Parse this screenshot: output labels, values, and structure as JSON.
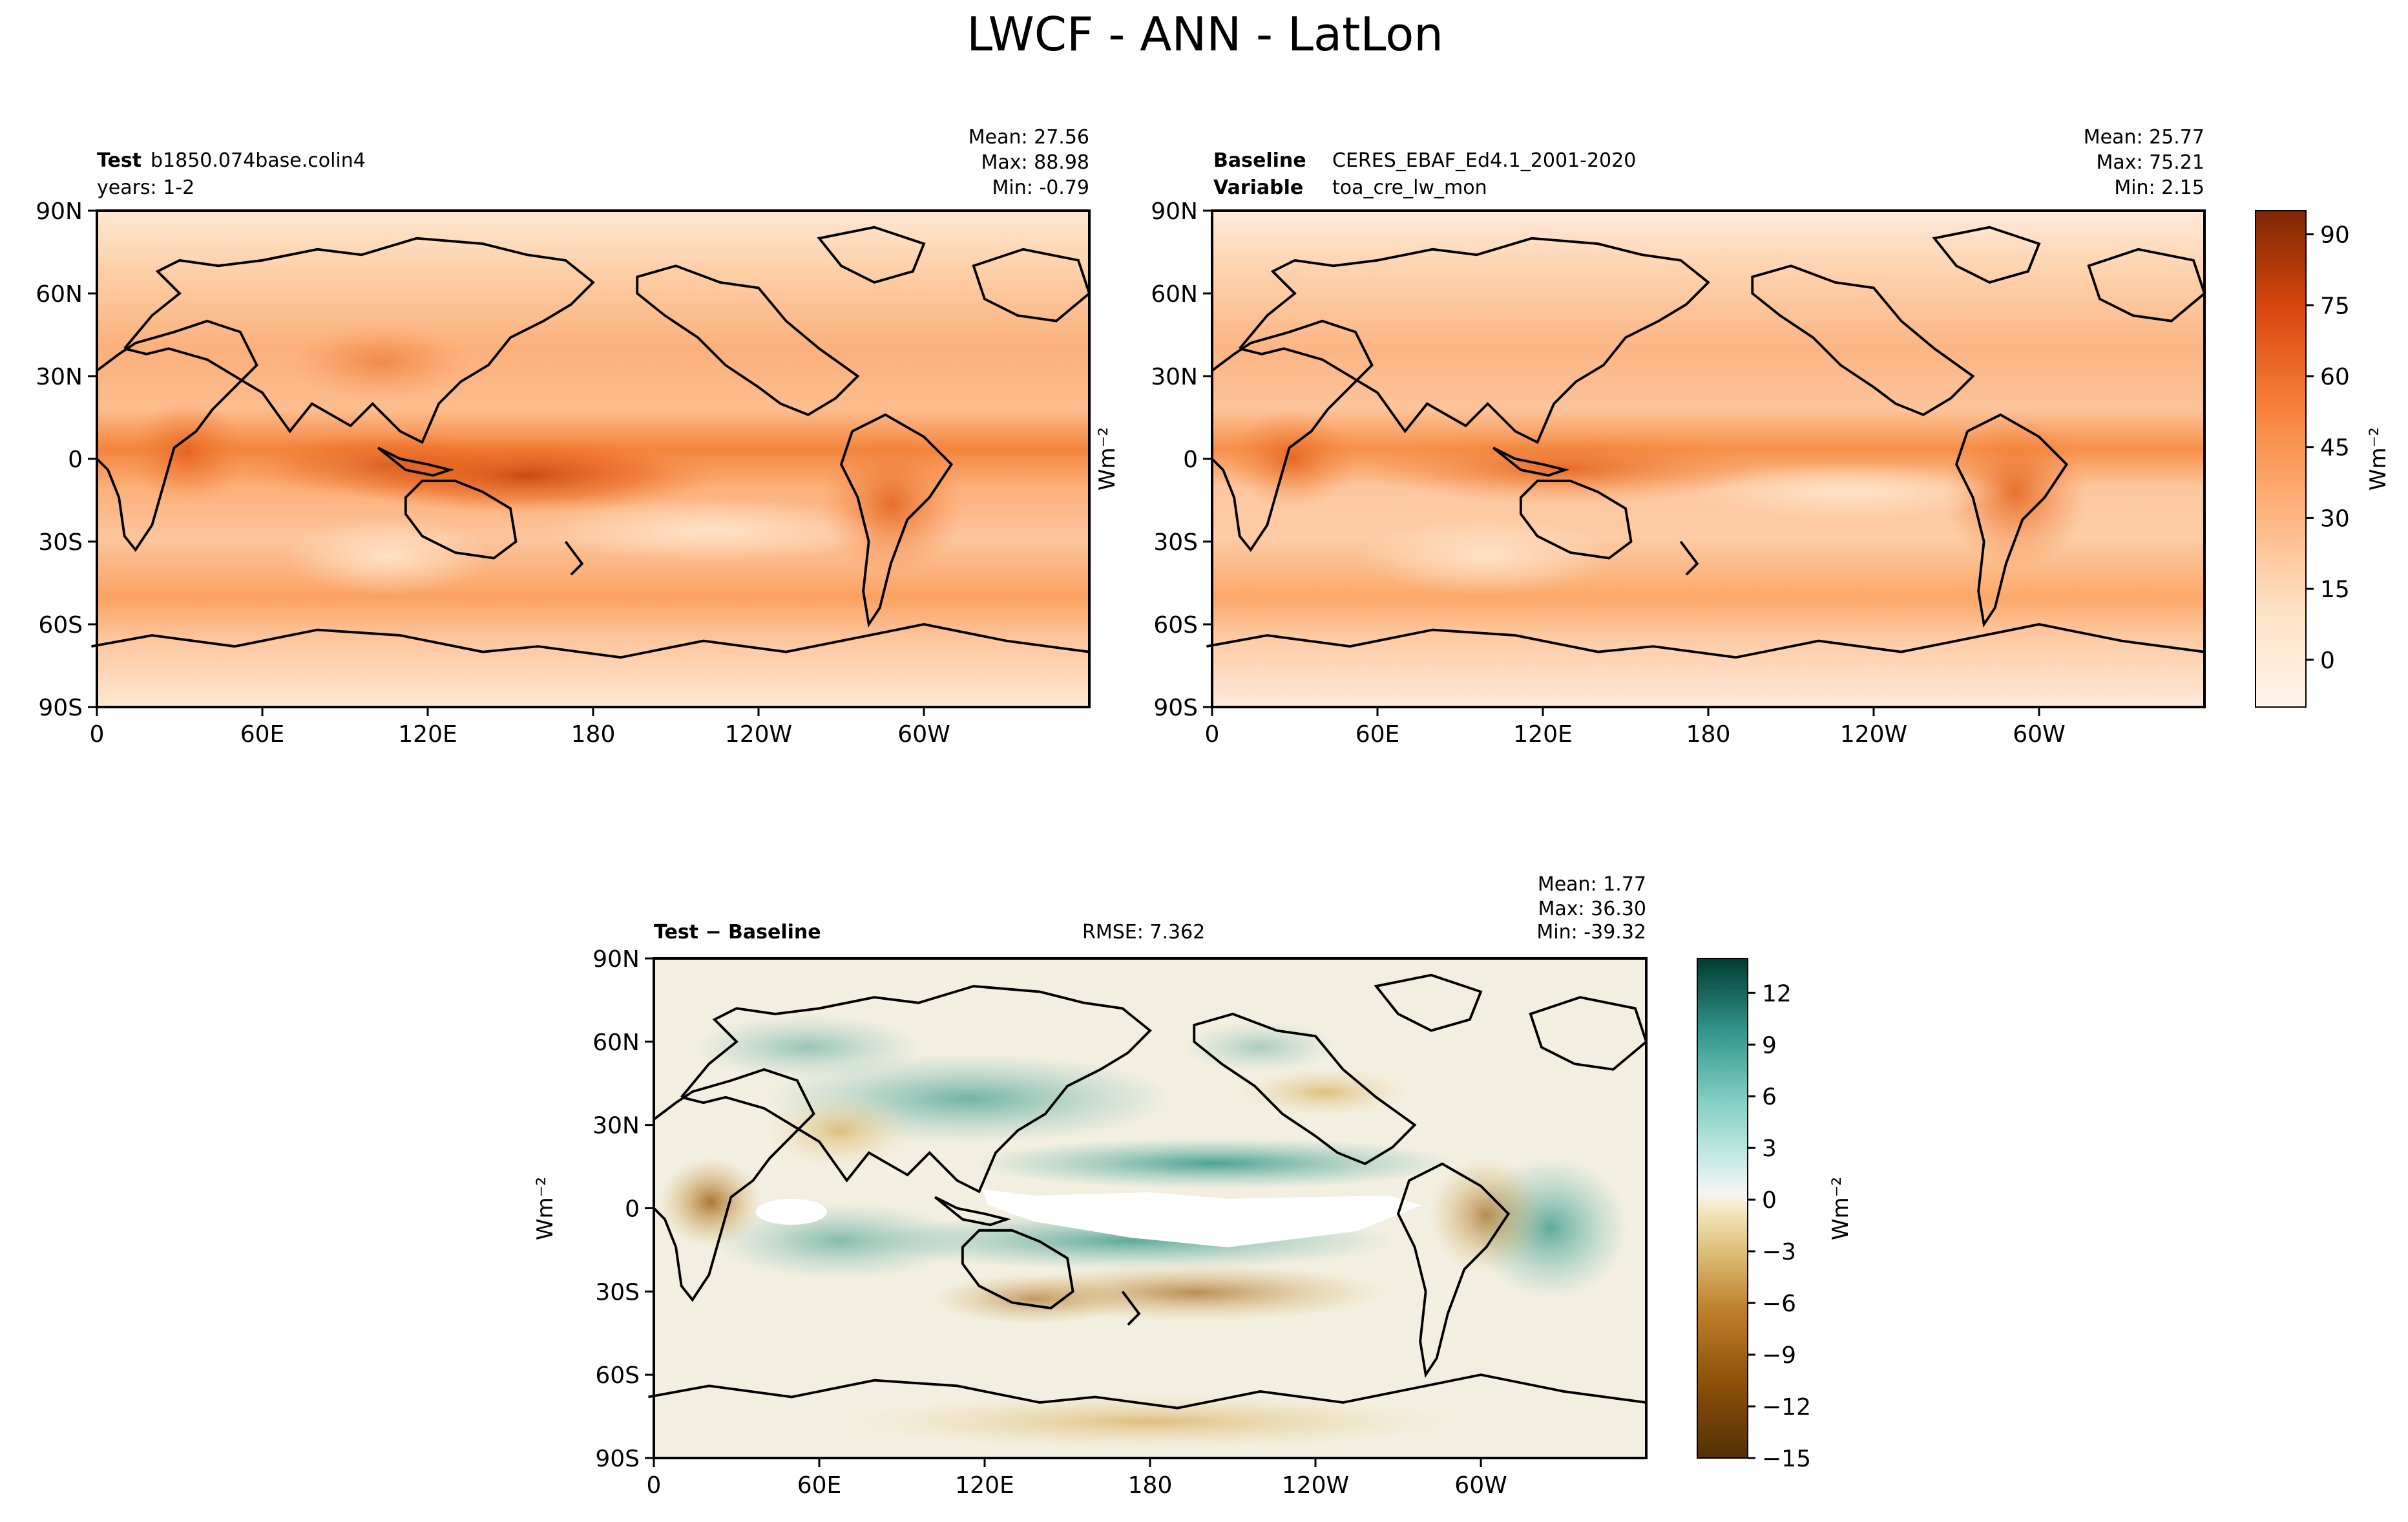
{
  "title": "LWCF - ANN - LatLon",
  "chart_data": [
    {
      "type": "heatmap",
      "panel": "test",
      "label_bold": "Test",
      "label_value": "b1850.074base.colin4",
      "label_line2": "years: 1-2",
      "stats": {
        "mean": "Mean: 27.56",
        "max": "Max: 88.98",
        "min": "Min: -0.79"
      },
      "xticks": [
        "0",
        "60E",
        "120E",
        "180",
        "120W",
        "60W"
      ],
      "yticks": [
        "90N",
        "60N",
        "30N",
        "0",
        "30S",
        "60S",
        "90S"
      ],
      "xlim": [
        0,
        360
      ],
      "ylim": [
        -90,
        90
      ]
    },
    {
      "type": "heatmap",
      "panel": "baseline",
      "label_bold": "Baseline",
      "label_value": "CERES_EBAF_Ed4.1_2001-2020",
      "label_bold2": "Variable",
      "label_value2": "toa_cre_lw_mon",
      "stats": {
        "mean": "Mean: 25.77",
        "max": "Max: 75.21",
        "min": "Min:  2.15"
      },
      "xticks": [
        "0",
        "60E",
        "120E",
        "180",
        "120W",
        "60W"
      ],
      "yticks": [
        "90N",
        "60N",
        "30N",
        "0",
        "30S",
        "60S",
        "90S"
      ],
      "xlim": [
        0,
        360
      ],
      "ylim": [
        -90,
        90
      ],
      "colorbar": {
        "label": "Wm⁻²",
        "ticks": [
          "90",
          "75",
          "60",
          "45",
          "30",
          "15",
          "0"
        ],
        "range": [
          -10,
          95
        ],
        "colormap": "Oranges"
      }
    },
    {
      "type": "heatmap",
      "panel": "difference",
      "label_bold": "Test − Baseline",
      "rmse": "RMSE: 7.362",
      "ylabel": "Wm⁻²",
      "stats": {
        "mean": "Mean:  1.77",
        "max": "Max: 36.30",
        "min": "Min: -39.32"
      },
      "xticks": [
        "0",
        "60E",
        "120E",
        "180",
        "120W",
        "60W"
      ],
      "yticks": [
        "90N",
        "60N",
        "30N",
        "0",
        "30S",
        "60S",
        "90S"
      ],
      "xlim": [
        0,
        360
      ],
      "ylim": [
        -90,
        90
      ],
      "colorbar": {
        "label": "Wm⁻²",
        "ticks": [
          "12",
          "9",
          "6",
          "3",
          "0",
          "−3",
          "−6",
          "−9",
          "−12",
          "−15"
        ],
        "range": [
          -15,
          14
        ],
        "colormap": "BrBG"
      }
    }
  ],
  "panel1_ylabel": "Wm⁻²"
}
